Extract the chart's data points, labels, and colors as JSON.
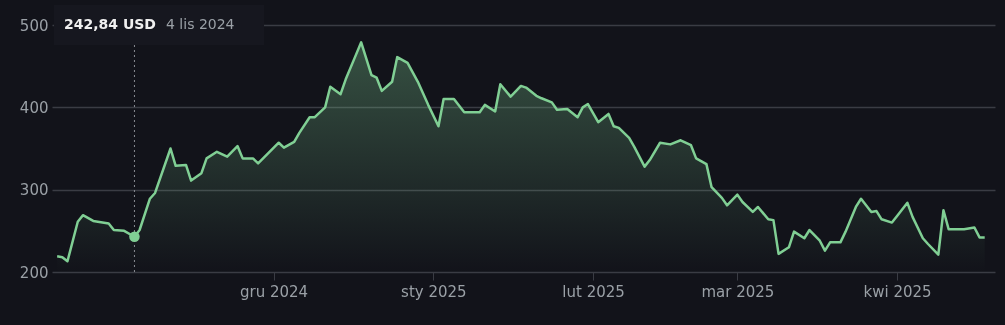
{
  "chart_data": {
    "type": "area",
    "x": [
      "2024-10-20",
      "2024-10-21",
      "2024-10-22",
      "2024-10-24",
      "2024-10-25",
      "2024-10-27",
      "2024-10-30",
      "2024-10-31",
      "2024-11-02",
      "2024-11-04",
      "2024-11-05",
      "2024-11-07",
      "2024-11-08",
      "2024-11-11",
      "2024-11-12",
      "2024-11-14",
      "2024-11-15",
      "2024-11-17",
      "2024-11-18",
      "2024-11-20",
      "2024-11-22",
      "2024-11-24",
      "2024-11-25",
      "2024-11-27",
      "2024-11-28",
      "2024-12-02",
      "2024-12-03",
      "2024-12-05",
      "2024-12-06",
      "2024-12-08",
      "2024-12-09",
      "2024-12-11",
      "2024-12-12",
      "2024-12-14",
      "2024-12-15",
      "2024-12-17",
      "2024-12-18",
      "2024-12-20",
      "2024-12-21",
      "2024-12-22",
      "2024-12-24",
      "2024-12-25",
      "2024-12-27",
      "2024-12-29",
      "2024-12-30",
      "2024-12-31",
      "2025-01-02",
      "2025-01-03",
      "2025-01-05",
      "2025-01-07",
      "2025-01-10",
      "2025-01-11",
      "2025-01-13",
      "2025-01-14",
      "2025-01-16",
      "2025-01-18",
      "2025-01-19",
      "2025-01-21",
      "2025-01-22",
      "2025-01-24",
      "2025-01-25",
      "2025-01-27",
      "2025-01-29",
      "2025-01-30",
      "2025-01-31",
      "2025-02-02",
      "2025-02-04",
      "2025-02-05",
      "2025-02-06",
      "2025-02-08",
      "2025-02-09",
      "2025-02-11",
      "2025-02-12",
      "2025-02-14",
      "2025-02-16",
      "2025-02-18",
      "2025-02-20",
      "2025-02-21",
      "2025-02-23",
      "2025-02-24",
      "2025-02-26",
      "2025-02-27",
      "2025-03-01",
      "2025-03-02",
      "2025-03-04",
      "2025-03-05",
      "2025-03-07",
      "2025-03-08",
      "2025-03-09",
      "2025-03-11",
      "2025-03-12",
      "2025-03-14",
      "2025-03-15",
      "2025-03-17",
      "2025-03-18",
      "2025-03-19",
      "2025-03-21",
      "2025-03-22",
      "2025-03-24",
      "2025-03-25",
      "2025-03-27",
      "2025-03-28",
      "2025-03-29",
      "2025-03-31",
      "2025-04-01",
      "2025-04-03",
      "2025-04-04",
      "2025-04-06",
      "2025-04-07",
      "2025-04-09",
      "2025-04-10",
      "2025-04-11",
      "2025-04-14",
      "2025-04-16",
      "2025-04-17",
      "2025-04-18"
    ],
    "series": [
      {
        "type": "scatter",
        "color": "#80cf94",
        "x": [
          "2024-11-04"
        ],
        "values": [
          242.84
        ]
      },
      {
        "color": "#80cf94",
        "values": [
          219,
          218,
          213,
          261,
          269,
          262,
          259,
          251,
          250,
          242.84,
          251,
          289,
          296,
          350,
          329,
          330,
          311,
          320,
          338,
          346,
          340,
          353,
          338,
          338,
          332,
          357,
          351,
          358,
          369,
          388,
          388,
          400,
          425,
          416,
          434,
          464,
          479,
          439,
          436,
          420,
          431,
          461,
          454,
          431,
          417,
          403,
          377,
          410,
          410,
          394,
          394,
          403,
          395,
          428,
          413,
          426,
          424,
          414,
          411,
          406,
          397,
          398,
          388,
          400,
          404,
          382,
          392,
          377,
          375,
          363,
          352,
          328,
          336,
          357,
          355,
          360,
          354,
          338,
          331,
          303,
          290,
          281,
          294,
          285,
          273,
          279,
          264,
          263,
          222,
          230,
          249,
          241,
          251,
          238,
          226,
          236,
          236,
          249,
          279,
          289,
          273,
          274,
          264,
          260,
          268,
          284,
          267,
          241,
          234,
          221,
          275,
          252,
          252,
          254,
          242,
          242
        ]
      }
    ],
    "xlim": [
      "2024-10-19",
      "2025-04-20"
    ],
    "xticks": [
      {
        "value": "2024-12-01",
        "label": "gru 2024"
      },
      {
        "value": "2025-01-01",
        "label": "sty 2025"
      },
      {
        "value": "2025-02-01",
        "label": "lut 2025"
      },
      {
        "value": "2025-03-01",
        "label": "mar 2025"
      },
      {
        "value": "2025-04-01",
        "label": "kwi 2025"
      }
    ],
    "ylim": [
      200,
      500
    ],
    "yticks": [
      200,
      300,
      400,
      500
    ],
    "grid": "y",
    "ref_lines": [
      {
        "axis": "x",
        "value": "2024-11-04",
        "line_style": "dotted",
        "color": "#8a8d93"
      }
    ],
    "annotations": [
      "242,84 USD",
      "4 lis 2024"
    ]
  }
}
